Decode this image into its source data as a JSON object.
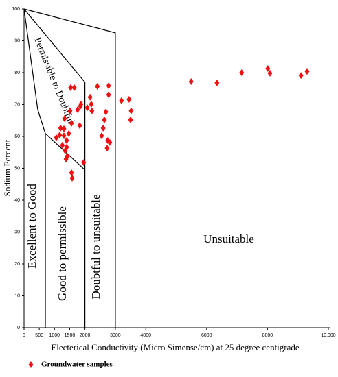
{
  "chart_data": {
    "type": "scatter",
    "x_label": "Electerical Conductivity (Micro Simense/cm) at 25 degree centigrade",
    "y_label": "Sodium Percent",
    "region_labels": [
      "Excellent to Good",
      "Good to permissible",
      "Doubtful to unsuitable",
      "Unsuitable",
      "Permissible to Doubtful"
    ],
    "xlim": [
      0,
      10000
    ],
    "ylim": [
      0,
      100
    ],
    "xticks": [
      0,
      500,
      1000,
      1500,
      2000,
      3000,
      4000,
      6000,
      8000,
      {
        "value": 10000,
        "label": "10,000"
      }
    ],
    "yticks": [
      0,
      10,
      20,
      30,
      40,
      50,
      60,
      70,
      80,
      90,
      100
    ],
    "boundary_lines": [
      {
        "x": [
          0,
          3000,
          3000
        ],
        "y": [
          100,
          92.5,
          0
        ]
      },
      {
        "x": [
          0,
          2000,
          2000
        ],
        "y": [
          100,
          77,
          0
        ]
      },
      {
        "x": [
          0,
          450,
          700,
          2000
        ],
        "y": [
          100,
          68.4,
          60.9,
          49.5
        ]
      },
      {
        "x": [
          700,
          700
        ],
        "y": [
          60.9,
          0
        ]
      }
    ],
    "series": [
      {
        "name": "Groundwater samples",
        "color": "#ee1111",
        "x": [
          1060,
          1200,
          1170,
          1260,
          1310,
          1310,
          1330,
          1350,
          1400,
          1400,
          1420,
          1380,
          1470,
          1510,
          1530,
          1560,
          1580,
          1560,
          1650,
          1760,
          1830,
          1850,
          1870,
          1960,
          2080,
          2170,
          2210,
          2230,
          2410,
          2550,
          2600,
          2640,
          2690,
          2730,
          2750,
          2780,
          2780,
          2820,
          3200,
          3450,
          3500,
          3520,
          5490,
          6340,
          7150,
          8010,
          8080,
          9100,
          9300
        ],
        "values": [
          59.6,
          62.6,
          60.4,
          57.2,
          62.4,
          60.2,
          65.6,
          55.5,
          58.7,
          56.6,
          53.8,
          52.9,
          60.9,
          68,
          75.3,
          48.6,
          46.9,
          64.1,
          75.3,
          68.4,
          63.4,
          69.5,
          70.1,
          51.8,
          69,
          72.3,
          70.1,
          68,
          75.7,
          60.2,
          62.6,
          65.2,
          67.7,
          56.3,
          58.7,
          73.1,
          75.9,
          58.1,
          71.2,
          71.6,
          65.2,
          68,
          77.2,
          76.8,
          80,
          81.3,
          79.8,
          79.1,
          80.4
        ]
      }
    ]
  }
}
